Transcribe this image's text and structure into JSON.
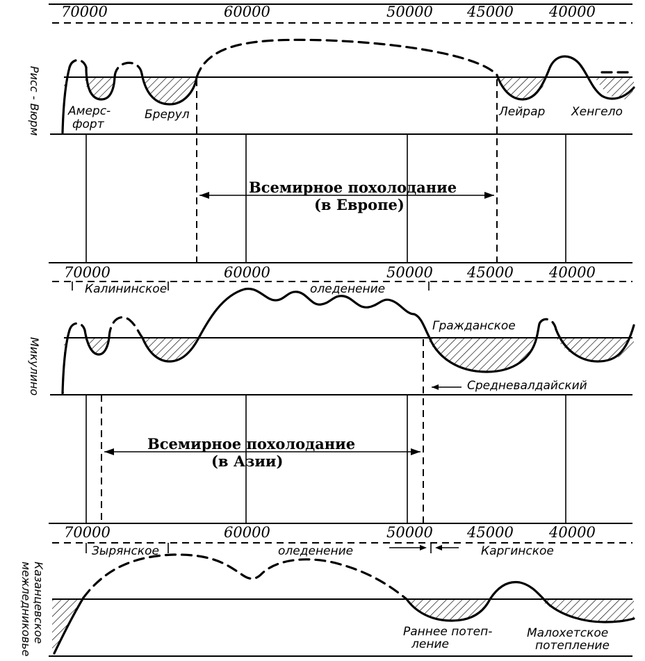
{
  "panel1": {
    "ticks": [
      "70000",
      "60000",
      "50000",
      "45000",
      "40000"
    ],
    "side_label": "Рисс - Вюрм",
    "labels": {
      "amersfoort": [
        "Амерс-",
        "форт"
      ],
      "brerup": "Брерул",
      "leirar": "Лейрар",
      "hengelo": "Хенгело"
    },
    "cooling_title": "Всемирное похолодание",
    "cooling_sub": "(в Европе)"
  },
  "panel2": {
    "ticks": [
      "70000",
      "60000",
      "50000",
      "45000",
      "40000"
    ],
    "side_label": "Микулино",
    "glaciation_left": "Калининское",
    "glaciation_right": "оледенение",
    "labels": {
      "grazhdanskoe": "Гражданское",
      "srednevaldaisky": "Средневалдайский"
    },
    "cooling_title": "Всемирное похолодание",
    "cooling_sub": "(в Азии)"
  },
  "panel3": {
    "ticks": [
      "70000",
      "60000",
      "50000",
      "45000",
      "40000"
    ],
    "side_label": [
      "Казанцевское",
      "межледниковье"
    ],
    "glaciation_left": "Зырянское",
    "glaciation_right": "оледенение",
    "karginskoe": "Каргинское",
    "labels": {
      "early_warming": [
        "Раннее потеп-",
        "ление"
      ],
      "malokhet_warming": [
        "Малохетское",
        "потепление"
      ]
    }
  }
}
